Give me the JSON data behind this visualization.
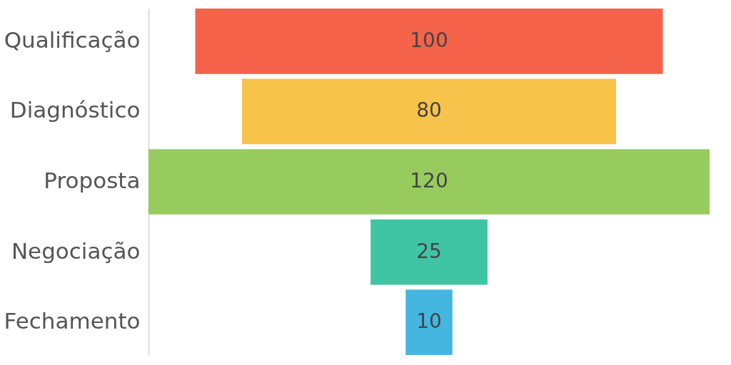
{
  "chart_data": {
    "type": "other",
    "categories": [
      "Qualificação",
      "Diagnóstico",
      "Proposta",
      "Negociação",
      "Fechamento"
    ],
    "values": [
      100,
      80,
      120,
      25,
      10
    ],
    "colors": [
      "#f4634a",
      "#f7c34a",
      "#97cb5e",
      "#3fc5a3",
      "#45b6e0"
    ],
    "data_labels": true
  }
}
